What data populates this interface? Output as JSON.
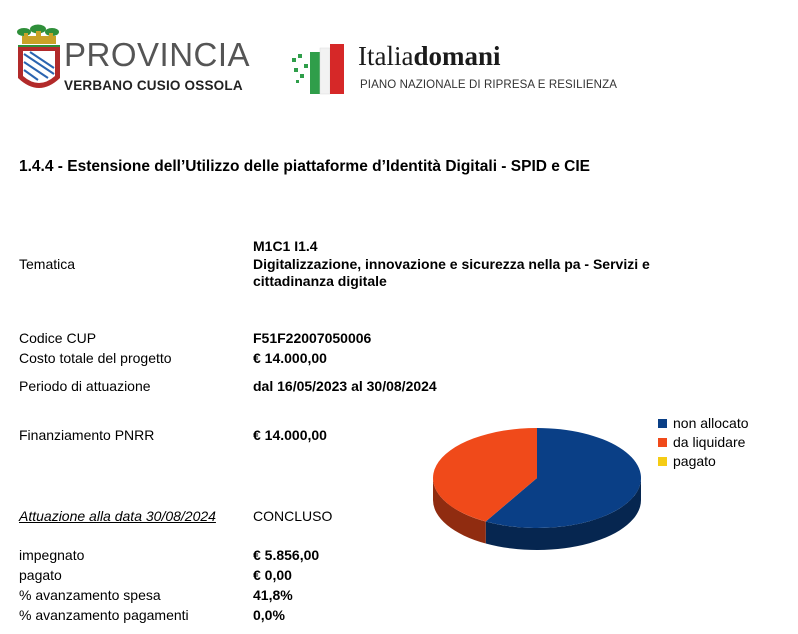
{
  "header": {
    "provincia_line1": "PROVINCIA",
    "provincia_line2": "VERBANO CUSIO OSSOLA",
    "italia_brand_regular": "Italia",
    "italia_brand_bold": "domani",
    "italia_subtitle": "PIANO NAZIONALE DI RIPRESA E RESILIENZA"
  },
  "title": "1.4.4 - Estensione dell’Utilizzo delle piattaforme d’Identità Digitali - SPID e CIE",
  "fields": {
    "tematica_label": "Tematica",
    "tematica_code": "M1C1 I1.4",
    "tematica_value": "Digitalizzazione, innovazione e sicurezza nella pa - Servizi e cittadinanza digitale",
    "cup_label": "Codice CUP",
    "cup_value": "F51F22007050006",
    "costo_label": "Costo totale del progetto",
    "costo_value": "€ 14.000,00",
    "periodo_label": "Periodo di attuazione",
    "periodo_value": "dal 16/05/2023 al 30/08/2024",
    "finanziamento_label": "Finanziamento PNRR",
    "finanziamento_value": "€ 14.000,00",
    "attuazione_label": "Attuazione alla data 30/08/2024",
    "attuazione_value": "CONCLUSO",
    "impegnato_label": "impegnato",
    "impegnato_value": "€ 5.856,00",
    "pagato_label": "pagato",
    "pagato_value": "€ 0,00",
    "spesa_label": "% avanzamento spesa",
    "spesa_value": "41,8%",
    "pagamenti_label": "% avanzamento pagamenti",
    "pagamenti_value": "0,0%"
  },
  "chart_data": {
    "type": "pie",
    "series": [
      {
        "name": "non allocato",
        "value": 58.2,
        "color": "#0a3f86"
      },
      {
        "name": "da liquidare",
        "value": 41.8,
        "color": "#f04a1a"
      },
      {
        "name": "pagato",
        "value": 0.0,
        "color": "#f5cc15"
      }
    ],
    "legend_position": "top-right"
  }
}
